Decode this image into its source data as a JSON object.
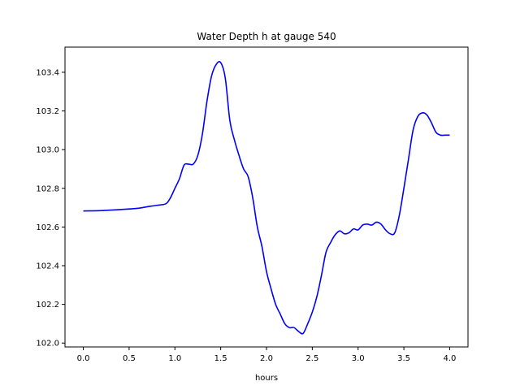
{
  "chart_data": {
    "type": "line",
    "title": "Water Depth h at gauge 540",
    "xlabel": "hours",
    "ylabel": "",
    "xlim": [
      -0.2,
      4.2
    ],
    "ylim": [
      101.98,
      103.53
    ],
    "grid": false,
    "xticks": [
      0.0,
      0.5,
      1.0,
      1.5,
      2.0,
      2.5,
      3.0,
      3.5,
      4.0
    ],
    "xtick_labels": [
      "0.0",
      "0.5",
      "1.0",
      "1.5",
      "2.0",
      "2.5",
      "3.0",
      "3.5",
      "4.0"
    ],
    "yticks": [
      102.0,
      102.2,
      102.4,
      102.6,
      102.8,
      103.0,
      103.2,
      103.4
    ],
    "ytick_labels": [
      "102.0",
      "102.2",
      "102.4",
      "102.6",
      "102.8",
      "103.0",
      "103.2",
      "103.4"
    ],
    "series": [
      {
        "color": "#0000ff",
        "x": [
          0.0,
          0.2,
          0.4,
          0.6,
          0.7,
          0.8,
          0.9,
          0.95,
          1.0,
          1.05,
          1.1,
          1.15,
          1.2,
          1.25,
          1.3,
          1.35,
          1.4,
          1.45,
          1.5,
          1.55,
          1.6,
          1.65,
          1.7,
          1.75,
          1.8,
          1.85,
          1.9,
          1.95,
          2.0,
          2.05,
          2.1,
          2.15,
          2.2,
          2.25,
          2.3,
          2.35,
          2.4,
          2.45,
          2.5,
          2.55,
          2.6,
          2.65,
          2.7,
          2.75,
          2.8,
          2.85,
          2.9,
          2.95,
          3.0,
          3.05,
          3.1,
          3.15,
          3.2,
          3.25,
          3.3,
          3.35,
          3.4,
          3.45,
          3.5,
          3.55,
          3.6,
          3.65,
          3.7,
          3.75,
          3.8,
          3.85,
          3.9,
          3.95,
          4.0
        ],
        "y": [
          102.683,
          102.685,
          102.69,
          102.697,
          102.705,
          102.712,
          102.72,
          102.75,
          102.8,
          102.85,
          102.92,
          102.925,
          102.925,
          102.97,
          103.08,
          103.25,
          103.38,
          103.44,
          103.45,
          103.37,
          103.15,
          103.05,
          102.97,
          102.9,
          102.86,
          102.75,
          102.6,
          102.5,
          102.37,
          102.28,
          102.2,
          102.15,
          102.1,
          102.08,
          102.08,
          102.06,
          102.05,
          102.1,
          102.16,
          102.24,
          102.35,
          102.47,
          102.52,
          102.56,
          102.58,
          102.565,
          102.57,
          102.59,
          102.585,
          102.61,
          102.615,
          102.61,
          102.625,
          102.615,
          102.585,
          102.565,
          102.57,
          102.66,
          102.8,
          102.95,
          103.1,
          103.17,
          103.19,
          103.18,
          103.14,
          103.09,
          103.075,
          103.075,
          103.075
        ]
      }
    ]
  }
}
